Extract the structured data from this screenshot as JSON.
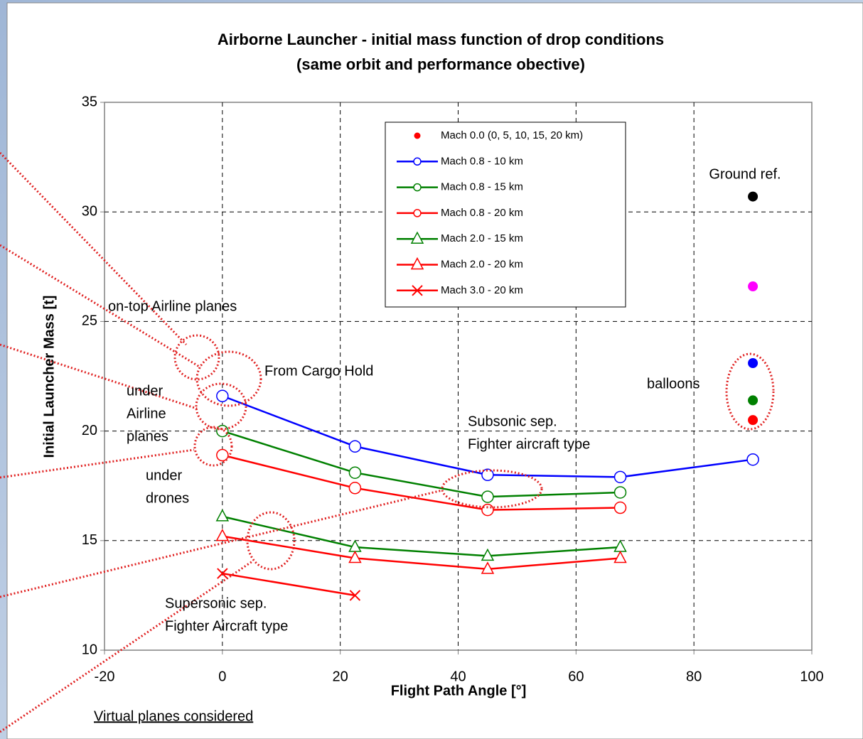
{
  "chart_data": {
    "type": "line",
    "title": "Airborne Launcher - initial mass function of drop conditions",
    "subtitle": "(same orbit and performance obective)",
    "x_label": "Flight Path Angle [°]",
    "y_label": "Initial Launcher Mass [t]",
    "xlim": [
      -20,
      100
    ],
    "xticks": [
      -20,
      0,
      20,
      40,
      60,
      80,
      100
    ],
    "ylim": [
      10,
      35
    ],
    "yticks": [
      10,
      15,
      20,
      25,
      30,
      35
    ],
    "grid": true,
    "series": [
      {
        "name": "Mach 0.0 (0, 5, 10, 15, 20 km)",
        "color": "#ff0000",
        "marker": "dot",
        "line": false,
        "x": [
          90,
          90,
          90,
          90,
          90
        ],
        "values": [
          30.7,
          26.6,
          23.1,
          21.4,
          20.5
        ],
        "colors": [
          "#000000",
          "#ff00ff",
          "#0000ff",
          "#008000",
          "#ff0000"
        ]
      },
      {
        "name": "Mach 0.8 - 10 km",
        "color": "#0000ff",
        "marker": "circle",
        "line": true,
        "x": [
          0,
          22.5,
          45,
          67.5,
          90
        ],
        "values": [
          21.6,
          19.3,
          18.0,
          17.9,
          18.7
        ]
      },
      {
        "name": "Mach 0.8 - 15 km",
        "color": "#008000",
        "marker": "circle",
        "line": true,
        "x": [
          0,
          22.5,
          45,
          67.5
        ],
        "values": [
          20.0,
          18.1,
          17.0,
          17.2
        ]
      },
      {
        "name": "Mach 0.8 - 20 km",
        "color": "#ff0000",
        "marker": "circle",
        "line": true,
        "x": [
          0,
          22.5,
          45,
          67.5
        ],
        "values": [
          18.9,
          17.4,
          16.4,
          16.5
        ]
      },
      {
        "name": "Mach 2.0 - 15 km",
        "color": "#008000",
        "marker": "triangle",
        "line": true,
        "x": [
          0,
          22.5,
          45,
          67.5
        ],
        "values": [
          16.1,
          14.7,
          14.3,
          14.7
        ]
      },
      {
        "name": "Mach 2.0 - 20 km",
        "color": "#ff0000",
        "marker": "triangle",
        "line": true,
        "x": [
          0,
          22.5,
          45,
          67.5
        ],
        "values": [
          15.2,
          14.2,
          13.7,
          14.2
        ]
      },
      {
        "name": "Mach 3.0 - 20 km",
        "color": "#ff0000",
        "marker": "x",
        "line": true,
        "x": [
          0,
          22.5
        ],
        "values": [
          13.5,
          12.5
        ]
      }
    ],
    "annotations": [
      {
        "lines": [
          "Ground ref."
        ]
      },
      {
        "lines": [
          "on-top Airline planes"
        ]
      },
      {
        "lines": [
          "From Cargo Hold"
        ]
      },
      {
        "lines": [
          "under",
          "Airline",
          "planes"
        ]
      },
      {
        "lines": [
          "under",
          "drones"
        ]
      },
      {
        "lines": [
          "balloons"
        ]
      },
      {
        "lines": [
          "Subsonic sep.",
          "Fighter aircraft type"
        ]
      },
      {
        "lines": [
          "Supersonic sep.",
          "Fighter Aircraft type"
        ]
      },
      {
        "lines": [
          "Virtual planes considered"
        ]
      }
    ]
  }
}
